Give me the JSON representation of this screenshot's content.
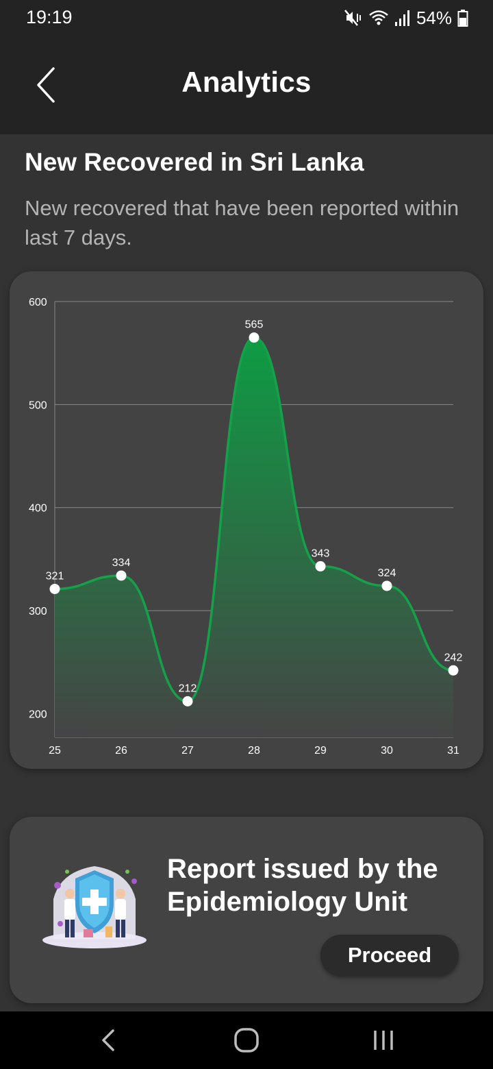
{
  "status_bar": {
    "time": "19:19",
    "battery": "54%",
    "icons": [
      "mute-vibrate-icon",
      "wifi-icon",
      "signal-icon",
      "battery-icon"
    ]
  },
  "app_bar": {
    "title": "Analytics",
    "back_icon": "chevron-left-icon"
  },
  "section": {
    "title": "New Recovered in Sri Lanka",
    "subtitle": "New recovered that have been reported within last 7 days."
  },
  "chart_data": {
    "type": "area",
    "title": "",
    "xlabel": "",
    "ylabel": "",
    "x": [
      "25",
      "26",
      "27",
      "28",
      "29",
      "30",
      "31"
    ],
    "series": [
      {
        "values": [
          321,
          334,
          212,
          565,
          343,
          324,
          242
        ]
      }
    ],
    "yticks": [
      200,
      300,
      400,
      500,
      600
    ],
    "ylim": [
      177,
      600
    ],
    "grid": true,
    "smooth": true,
    "line_color": "#15a04a",
    "fill_top_color": "#0e9c44",
    "fill_bottom_color": "#454545"
  },
  "report_card": {
    "text": "Report issued by the Epidemiology Unit",
    "button_label": "Proceed",
    "illustration_icon": "doctors-shield-illustration"
  },
  "nav_bar": {
    "icons": [
      "nav-back-icon",
      "nav-home-icon",
      "nav-recents-icon"
    ]
  }
}
